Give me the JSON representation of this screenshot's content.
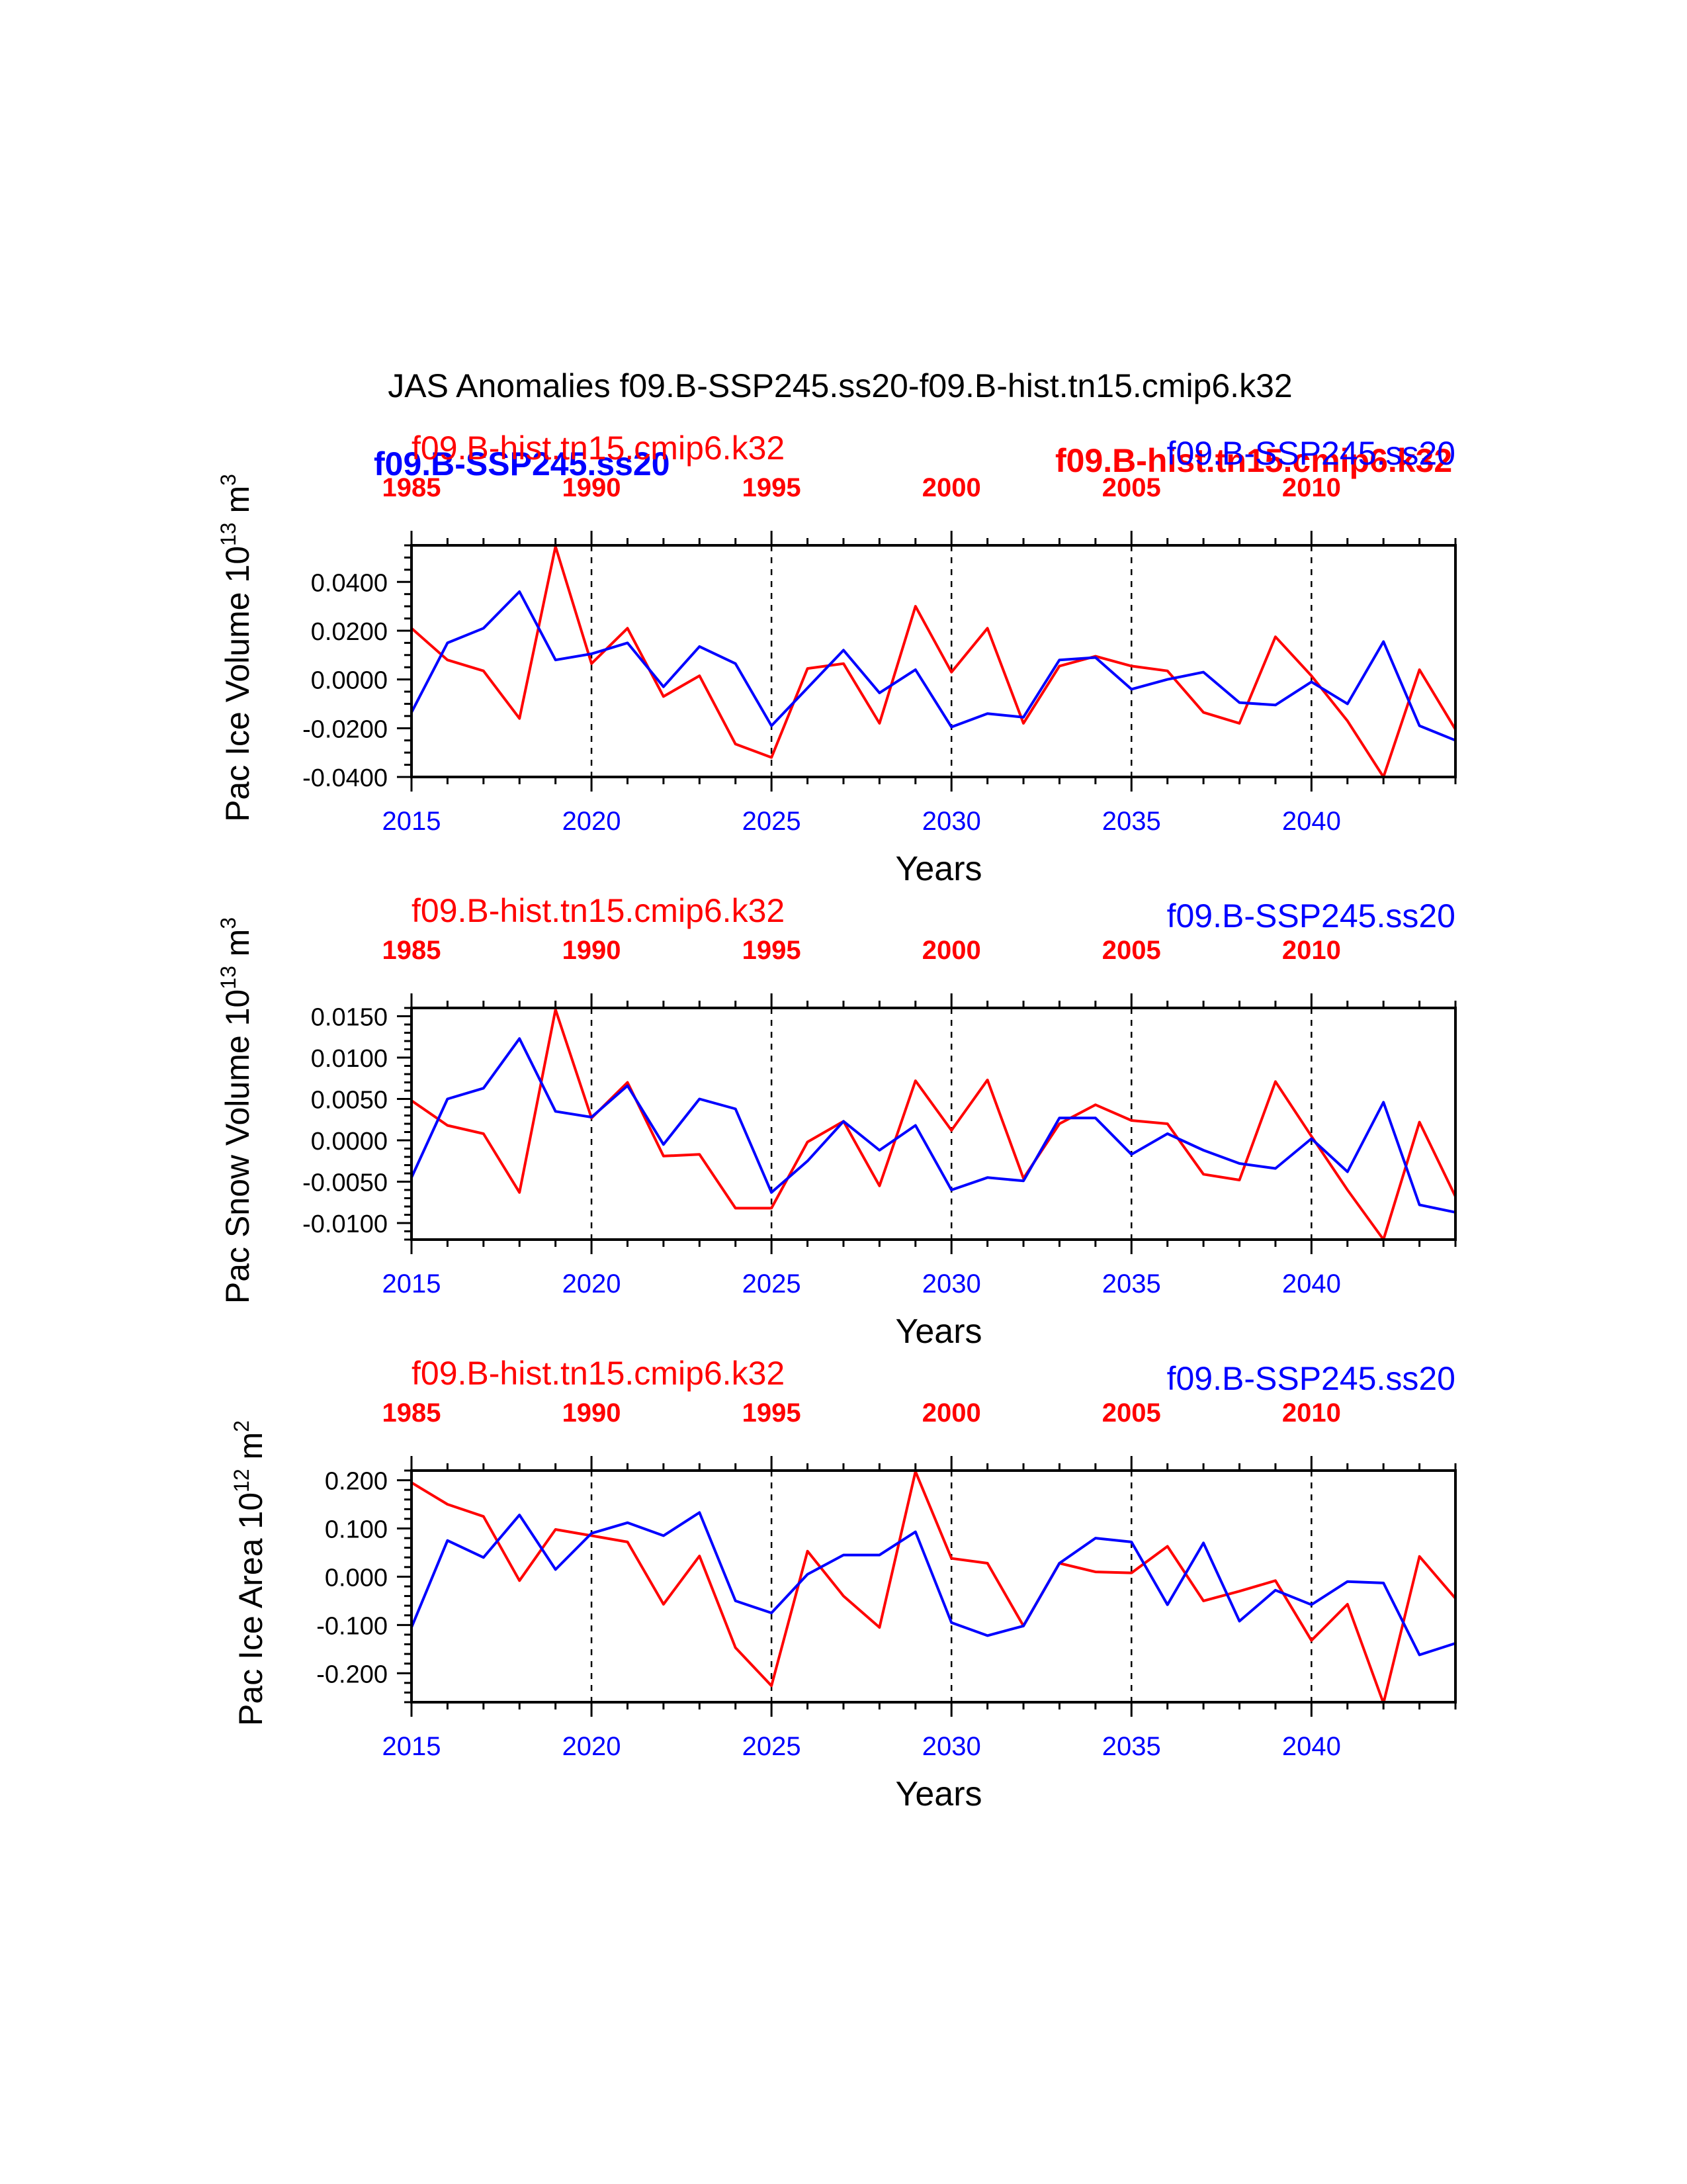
{
  "title": "JAS Anomalies f09.B-SSP245.ss20-f09.B-hist.tn15.cmip6.k32",
  "colors": {
    "ssp": "#0000ff",
    "hist": "#ff0000",
    "axis": "#000000"
  },
  "overlay_labels": {
    "ssp_bold": "f09.B-SSP245.ss20",
    "hist_bold": "f09.B-hist.tn15.cmip6.k32"
  },
  "chart_data": [
    {
      "type": "line",
      "ylabel": "Pac Ice Volume 10",
      "ylabel_sup": "13",
      "ylabel_unit": " m",
      "ylabel_unit_sup": "3",
      "xlabel": "Years",
      "ylim": [
        -0.04,
        0.055
      ],
      "yticks": [
        -0.04,
        -0.02,
        0.0,
        0.02,
        0.04
      ],
      "ytick_labels": [
        "-0.0400",
        "-0.0200",
        "0.0000",
        "0.0200",
        "0.0400"
      ],
      "yminor_step": 0.005,
      "hist_label": "f09.B-hist.tn15.cmip6.k32",
      "ssp_label": "f09.B-SSP245.ss20",
      "series": [
        {
          "name": "f09.B-SSP245.ss20",
          "color": "#0000ff",
          "values": [
            -0.0135,
            0.015,
            0.021,
            0.036,
            0.008,
            0.0105,
            0.015,
            -0.003,
            0.0135,
            0.0065,
            -0.019,
            -0.0035,
            0.012,
            -0.0055,
            0.004,
            -0.0195,
            -0.014,
            -0.0155,
            0.008,
            0.009,
            -0.004,
            0.0,
            0.003,
            -0.0095,
            -0.0105,
            -0.001,
            -0.01,
            0.0155,
            -0.019,
            -0.025
          ]
        },
        {
          "name": "f09.B-hist.tn15.cmip6.k32",
          "color": "#ff0000",
          "values": [
            0.021,
            0.008,
            0.0035,
            -0.016,
            0.0545,
            0.0065,
            0.021,
            -0.007,
            0.0015,
            -0.0265,
            -0.032,
            0.0045,
            0.0065,
            -0.018,
            0.03,
            0.003,
            0.021,
            -0.018,
            0.0055,
            0.0095,
            0.0055,
            0.0035,
            -0.0135,
            -0.018,
            0.0175,
            0.0015,
            -0.017,
            -0.04,
            0.004,
            -0.0205
          ]
        }
      ]
    },
    {
      "type": "line",
      "ylabel": "Pac Snow Volume 10",
      "ylabel_sup": "13",
      "ylabel_unit": " m",
      "ylabel_unit_sup": "3",
      "xlabel": "Years",
      "ylim": [
        -0.012,
        0.016
      ],
      "yticks": [
        -0.01,
        -0.005,
        0.0,
        0.005,
        0.01,
        0.015
      ],
      "ytick_labels": [
        "-0.0100",
        "-0.0050",
        "0.0000",
        "0.0050",
        "0.0100",
        "0.0150"
      ],
      "yminor_step": 0.001,
      "hist_label": "f09.B-hist.tn15.cmip6.k32",
      "ssp_label": "f09.B-SSP245.ss20",
      "series": [
        {
          "name": "f09.B-SSP245.ss20",
          "color": "#0000ff",
          "values": [
            -0.0045,
            0.005,
            0.0063,
            0.0123,
            0.0035,
            0.0028,
            0.0066,
            -0.0005,
            0.005,
            0.0038,
            -0.0063,
            -0.0025,
            0.0023,
            -0.0012,
            0.0018,
            -0.006,
            -0.0045,
            -0.0049,
            0.0027,
            0.0027,
            -0.0017,
            0.0008,
            -0.0012,
            -0.0028,
            -0.0034,
            0.0002,
            -0.0038,
            0.0046,
            -0.0078,
            -0.0087
          ]
        },
        {
          "name": "f09.B-hist.tn15.cmip6.k32",
          "color": "#ff0000",
          "values": [
            0.0048,
            0.0018,
            0.0008,
            -0.0063,
            0.0158,
            0.0027,
            0.007,
            -0.0019,
            -0.0017,
            -0.0082,
            -0.0082,
            -0.0002,
            0.0023,
            -0.0055,
            0.0072,
            0.0012,
            0.0073,
            -0.0046,
            0.002,
            0.0043,
            0.0024,
            0.002,
            -0.0041,
            -0.0048,
            0.0071,
            0.0005,
            -0.006,
            -0.012,
            0.0022,
            -0.0068
          ]
        }
      ]
    },
    {
      "type": "line",
      "ylabel": "Pac Ice Area 10",
      "ylabel_sup": "12",
      "ylabel_unit": " m",
      "ylabel_unit_sup": "2",
      "xlabel": "Years",
      "ylim": [
        -0.26,
        0.22
      ],
      "yticks": [
        -0.2,
        -0.1,
        0.0,
        0.1,
        0.2
      ],
      "ytick_labels": [
        "-0.200",
        "-0.100",
        "0.000",
        "0.100",
        "0.200"
      ],
      "yminor_step": 0.02,
      "hist_label": "f09.B-hist.tn15.cmip6.k32",
      "ssp_label": "f09.B-SSP245.ss20",
      "series": [
        {
          "name": "f09.B-SSP245.ss20",
          "color": "#0000ff",
          "values": [
            -0.105,
            0.075,
            0.04,
            0.128,
            0.015,
            0.09,
            0.112,
            0.085,
            0.133,
            -0.05,
            -0.075,
            0.005,
            0.045,
            0.045,
            0.093,
            -0.095,
            -0.122,
            -0.102,
            0.028,
            0.08,
            0.072,
            -0.058,
            0.07,
            -0.092,
            -0.028,
            -0.058,
            -0.01,
            -0.013,
            -0.162,
            -0.138
          ]
        },
        {
          "name": "f09.B-hist.tn15.cmip6.k32",
          "color": "#ff0000",
          "values": [
            0.195,
            0.15,
            0.125,
            -0.008,
            0.098,
            0.085,
            0.072,
            -0.057,
            0.043,
            -0.147,
            -0.226,
            0.053,
            -0.04,
            -0.105,
            0.218,
            0.038,
            0.028,
            -0.102,
            0.028,
            0.01,
            0.008,
            0.063,
            -0.05,
            -0.03,
            -0.008,
            -0.132,
            -0.057,
            -0.262,
            0.042,
            -0.045
          ]
        }
      ]
    }
  ],
  "x_bottom": {
    "min": 2015,
    "max": 2044,
    "ticks": [
      "2015",
      "2020",
      "2025",
      "2030",
      "2035",
      "2040"
    ]
  },
  "x_top": {
    "ticks": [
      "1985",
      "1990",
      "1995",
      "2000",
      "2005",
      "2010"
    ]
  }
}
